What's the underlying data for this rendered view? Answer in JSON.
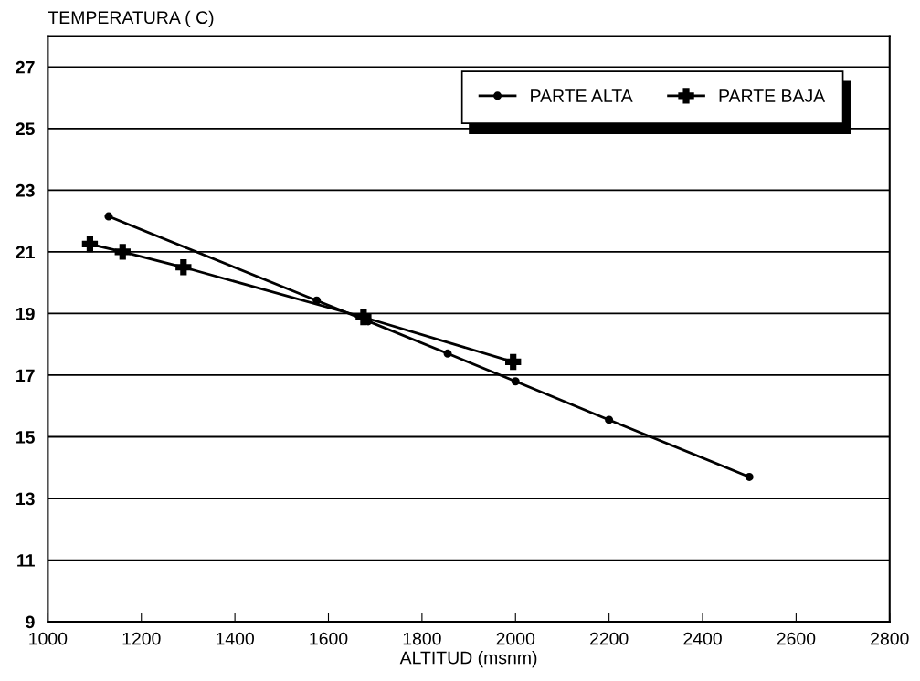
{
  "chart_data": {
    "type": "line",
    "ylabel": "TEMPERATURA ( C)",
    "xlabel": "ALTITUD (msnm)",
    "series": [
      {
        "name": "PARTE ALTA",
        "color": "#000000",
        "marker": "circle",
        "x": [
          1130,
          1575,
          1685,
          1855,
          2000,
          2200,
          2500
        ],
        "values": [
          22.15,
          19.42,
          18.75,
          17.7,
          16.8,
          15.55,
          13.7
        ]
      },
      {
        "name": "PARTE BAJA",
        "color": "#000000",
        "marker": "cross",
        "x": [
          1090,
          1160,
          1290,
          1675,
          1995
        ],
        "values": [
          21.25,
          21.0,
          20.5,
          18.88,
          17.43
        ]
      }
    ],
    "xlim": [
      1000,
      2800
    ],
    "xticks": [
      1000,
      1200,
      1400,
      1600,
      1800,
      2000,
      2200,
      2400,
      2600,
      2800
    ],
    "ylim": [
      9,
      28
    ],
    "yticks": [
      9,
      11,
      13,
      15,
      17,
      19,
      21,
      23,
      25,
      27
    ],
    "grid": "y",
    "legend": "top right",
    "line_style": "solid"
  }
}
